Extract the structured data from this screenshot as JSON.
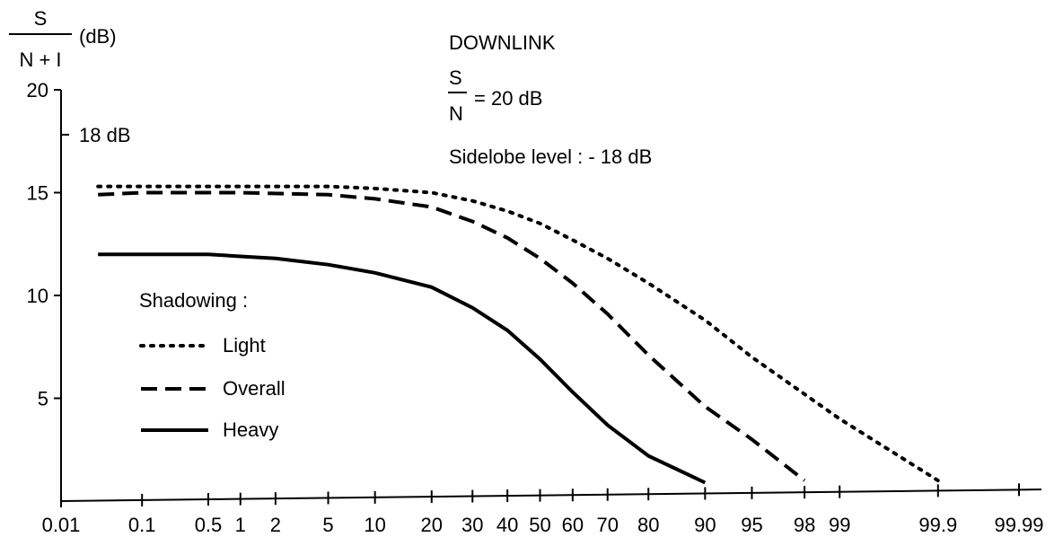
{
  "chart_data": {
    "type": "line",
    "title": "DOWNLINK",
    "ylabel": {
      "numerator": "S",
      "denominator": "N + I",
      "unit": "(dB)"
    },
    "xlabel": "",
    "y_ticks": [
      5,
      10,
      15,
      20
    ],
    "y_annotation": "18 dB",
    "ylim": [
      0,
      20
    ],
    "x_ticks": [
      "0.01",
      "0.1",
      "0.5",
      "1",
      "2",
      "5",
      "10",
      "20",
      "30",
      "40",
      "50",
      "60",
      "70",
      "80",
      "90",
      "95",
      "98",
      "99",
      "99.9",
      "99.99"
    ],
    "x_scale": "normal-probability (%)",
    "annotations": {
      "sn_numerator": "S",
      "sn_denominator": "N",
      "sn_value": "= 20 dB",
      "sidelobe": "Sidelobe  level :  - 18 dB"
    },
    "legend": {
      "title": "Shadowing :",
      "placement": "left-center"
    },
    "series": [
      {
        "name": "Light",
        "style": "dotted",
        "points": [
          [
            0.03,
            15.3
          ],
          [
            0.1,
            15.3
          ],
          [
            1,
            15.3
          ],
          [
            5,
            15.3
          ],
          [
            10,
            15.2
          ],
          [
            20,
            15.0
          ],
          [
            30,
            14.6
          ],
          [
            40,
            14.1
          ],
          [
            50,
            13.5
          ],
          [
            60,
            12.7
          ],
          [
            70,
            11.8
          ],
          [
            80,
            10.6
          ],
          [
            90,
            8.8
          ],
          [
            95,
            7.0
          ],
          [
            98,
            5.2
          ],
          [
            99,
            4.0
          ],
          [
            99.9,
            1.0
          ]
        ]
      },
      {
        "name": "Overall",
        "style": "dashed",
        "points": [
          [
            0.03,
            14.9
          ],
          [
            0.1,
            15.0
          ],
          [
            1,
            15.0
          ],
          [
            5,
            14.9
          ],
          [
            10,
            14.7
          ],
          [
            20,
            14.3
          ],
          [
            30,
            13.6
          ],
          [
            40,
            12.8
          ],
          [
            50,
            11.8
          ],
          [
            60,
            10.6
          ],
          [
            70,
            9.1
          ],
          [
            80,
            7.1
          ],
          [
            90,
            4.6
          ],
          [
            95,
            3.0
          ],
          [
            98,
            1.0
          ]
        ]
      },
      {
        "name": "Heavy",
        "style": "solid",
        "points": [
          [
            0.03,
            12.0
          ],
          [
            0.1,
            12.0
          ],
          [
            0.5,
            12.0
          ],
          [
            1,
            11.9
          ],
          [
            2,
            11.8
          ],
          [
            5,
            11.5
          ],
          [
            10,
            11.1
          ],
          [
            20,
            10.4
          ],
          [
            30,
            9.4
          ],
          [
            40,
            8.3
          ],
          [
            50,
            6.9
          ],
          [
            60,
            5.3
          ],
          [
            70,
            3.7
          ],
          [
            80,
            2.2
          ],
          [
            90,
            0.9
          ]
        ]
      }
    ]
  }
}
